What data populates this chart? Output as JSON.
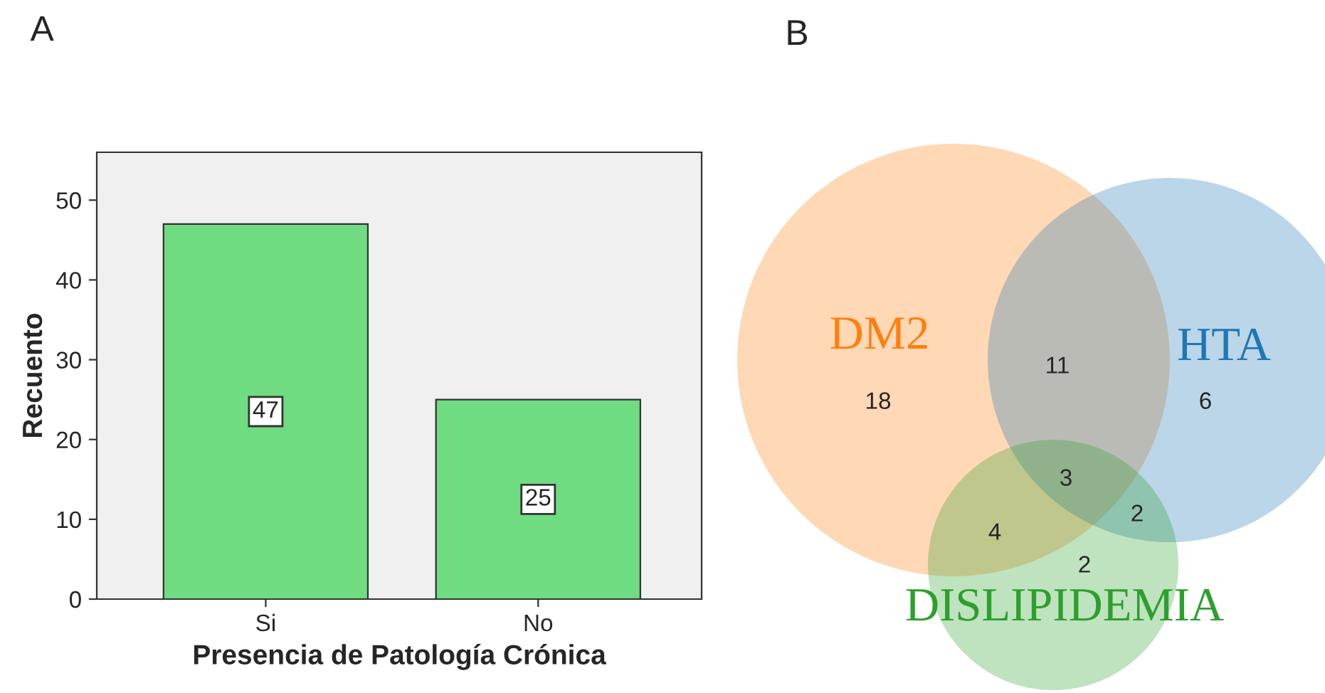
{
  "chart_data": [
    {
      "type": "bar",
      "title": "A",
      "categories": [
        "Si",
        "No"
      ],
      "values": [
        47,
        25
      ],
      "color": "#6fdc81",
      "ylim": [
        0,
        56
      ],
      "yticks": [
        0,
        10,
        20,
        30,
        40,
        50
      ],
      "xlabel": "Presencia de Patología Crónica",
      "ylabel": "Recuento",
      "data_labels": true,
      "grid": false
    },
    {
      "type": "other",
      "title": "B",
      "categories": [
        "DM2",
        "HTA",
        "DISLIPIDEMIA"
      ],
      "values": [
        18,
        6,
        2
      ],
      "colors": [
        "#ff7f0e",
        "#1f77b4",
        "#2ca02c"
      ],
      "data_labels": true,
      "annotations": [
        "11",
        "4",
        "2",
        "3"
      ]
    }
  ]
}
